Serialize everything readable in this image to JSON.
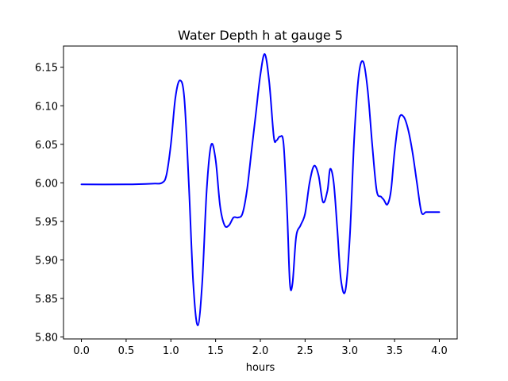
{
  "chart_data": {
    "type": "line",
    "title": "Water Depth h at gauge 5",
    "xlabel": "hours",
    "ylabel": "",
    "xlim": [
      -0.2,
      4.2
    ],
    "ylim": [
      5.7975,
      6.1775
    ],
    "xticks": [
      0.0,
      0.5,
      1.0,
      1.5,
      2.0,
      2.5,
      3.0,
      3.5,
      4.0
    ],
    "xtick_labels": [
      "0.0",
      "0.5",
      "1.0",
      "1.5",
      "2.0",
      "2.5",
      "3.0",
      "3.5",
      "4.0"
    ],
    "yticks": [
      5.8,
      5.85,
      5.9,
      5.95,
      6.0,
      6.05,
      6.1,
      6.15
    ],
    "ytick_labels": [
      "5.80",
      "5.85",
      "5.90",
      "5.95",
      "6.00",
      "6.05",
      "6.10",
      "6.15"
    ],
    "grid": false,
    "line_color": "#0000ff",
    "series": [
      {
        "x": [
          0.0,
          0.5,
          0.8,
          0.9,
          0.95,
          1.0,
          1.05,
          1.1,
          1.15,
          1.2,
          1.25,
          1.3,
          1.35,
          1.4,
          1.45,
          1.5,
          1.55,
          1.6,
          1.65,
          1.7,
          1.75,
          1.8,
          1.85,
          1.9,
          1.95,
          2.0,
          2.05,
          2.1,
          2.15,
          2.18,
          2.22,
          2.26,
          2.3,
          2.33,
          2.36,
          2.4,
          2.45,
          2.5,
          2.55,
          2.6,
          2.65,
          2.7,
          2.75,
          2.78,
          2.82,
          2.86,
          2.9,
          2.95,
          3.0,
          3.05,
          3.1,
          3.15,
          3.2,
          3.25,
          3.3,
          3.35,
          3.38,
          3.42,
          3.46,
          3.5,
          3.55,
          3.6,
          3.65,
          3.7,
          3.75,
          3.8,
          3.85,
          3.9,
          3.95,
          4.0
        ],
        "y": [
          5.998,
          5.998,
          5.999,
          6.0,
          6.01,
          6.05,
          6.11,
          6.133,
          6.11,
          6.0,
          5.87,
          5.815,
          5.87,
          5.99,
          6.049,
          6.03,
          5.97,
          5.945,
          5.945,
          5.955,
          5.955,
          5.96,
          5.99,
          6.04,
          6.09,
          6.14,
          6.167,
          6.13,
          6.06,
          6.055,
          6.06,
          6.05,
          5.96,
          5.87,
          5.87,
          5.93,
          5.945,
          5.96,
          6.0,
          6.022,
          6.01,
          5.975,
          5.99,
          6.018,
          6.0,
          5.94,
          5.875,
          5.86,
          5.93,
          6.06,
          6.14,
          6.157,
          6.12,
          6.05,
          5.99,
          5.982,
          5.978,
          5.972,
          5.99,
          6.04,
          6.083,
          6.086,
          6.07,
          6.04,
          6.0,
          5.962,
          5.962,
          5.962,
          5.962,
          5.962
        ]
      }
    ]
  }
}
